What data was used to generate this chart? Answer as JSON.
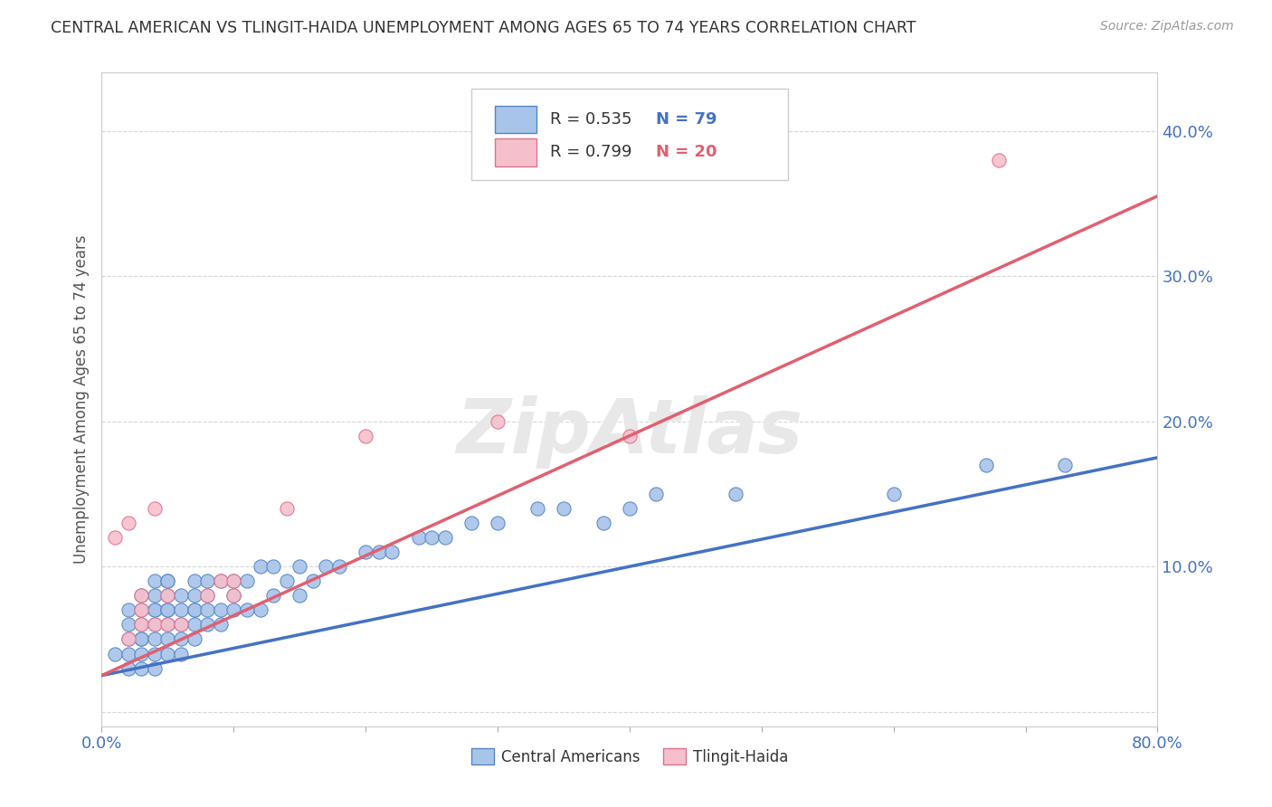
{
  "title": "CENTRAL AMERICAN VS TLINGIT-HAIDA UNEMPLOYMENT AMONG AGES 65 TO 74 YEARS CORRELATION CHART",
  "source": "Source: ZipAtlas.com",
  "ylabel": "Unemployment Among Ages 65 to 74 years",
  "xlim": [
    0.0,
    0.8
  ],
  "ylim": [
    -0.01,
    0.44
  ],
  "xticks": [
    0.0,
    0.1,
    0.2,
    0.3,
    0.4,
    0.5,
    0.6,
    0.7,
    0.8
  ],
  "yticks": [
    0.0,
    0.1,
    0.2,
    0.3,
    0.4
  ],
  "legend_r_blue": "R = 0.535",
  "legend_n_blue": "N = 79",
  "legend_r_pink": "R = 0.799",
  "legend_n_pink": "N = 20",
  "color_blue_fill": "#a8c4e8",
  "color_blue_edge": "#5585c5",
  "color_blue_line": "#4472c4",
  "color_pink_fill": "#f5c0cc",
  "color_pink_edge": "#e07090",
  "color_pink_line": "#e06070",
  "color_axis_text": "#4472c4",
  "blue_scatter_x": [
    0.01,
    0.02,
    0.02,
    0.02,
    0.02,
    0.02,
    0.03,
    0.03,
    0.03,
    0.03,
    0.03,
    0.03,
    0.03,
    0.04,
    0.04,
    0.04,
    0.04,
    0.04,
    0.04,
    0.04,
    0.04,
    0.05,
    0.05,
    0.05,
    0.05,
    0.05,
    0.05,
    0.05,
    0.05,
    0.06,
    0.06,
    0.06,
    0.06,
    0.06,
    0.07,
    0.07,
    0.07,
    0.07,
    0.07,
    0.07,
    0.08,
    0.08,
    0.08,
    0.08,
    0.09,
    0.09,
    0.09,
    0.1,
    0.1,
    0.1,
    0.11,
    0.11,
    0.12,
    0.12,
    0.13,
    0.13,
    0.14,
    0.15,
    0.15,
    0.16,
    0.17,
    0.18,
    0.2,
    0.21,
    0.22,
    0.24,
    0.25,
    0.26,
    0.28,
    0.3,
    0.33,
    0.35,
    0.38,
    0.4,
    0.42,
    0.48,
    0.6,
    0.67,
    0.73
  ],
  "blue_scatter_y": [
    0.04,
    0.03,
    0.04,
    0.05,
    0.06,
    0.07,
    0.03,
    0.04,
    0.05,
    0.05,
    0.06,
    0.07,
    0.08,
    0.03,
    0.04,
    0.05,
    0.06,
    0.07,
    0.07,
    0.08,
    0.09,
    0.04,
    0.05,
    0.06,
    0.07,
    0.07,
    0.08,
    0.09,
    0.09,
    0.04,
    0.05,
    0.06,
    0.07,
    0.08,
    0.05,
    0.06,
    0.07,
    0.07,
    0.08,
    0.09,
    0.06,
    0.07,
    0.08,
    0.09,
    0.06,
    0.07,
    0.09,
    0.07,
    0.08,
    0.09,
    0.07,
    0.09,
    0.07,
    0.1,
    0.08,
    0.1,
    0.09,
    0.08,
    0.1,
    0.09,
    0.1,
    0.1,
    0.11,
    0.11,
    0.11,
    0.12,
    0.12,
    0.12,
    0.13,
    0.13,
    0.14,
    0.14,
    0.13,
    0.14,
    0.15,
    0.15,
    0.15,
    0.17,
    0.17
  ],
  "pink_scatter_x": [
    0.01,
    0.02,
    0.02,
    0.03,
    0.03,
    0.03,
    0.04,
    0.04,
    0.05,
    0.05,
    0.06,
    0.08,
    0.09,
    0.1,
    0.1,
    0.14,
    0.2,
    0.3,
    0.4,
    0.68
  ],
  "pink_scatter_y": [
    0.12,
    0.05,
    0.13,
    0.06,
    0.07,
    0.08,
    0.06,
    0.14,
    0.06,
    0.08,
    0.06,
    0.08,
    0.09,
    0.08,
    0.09,
    0.14,
    0.19,
    0.2,
    0.19,
    0.38
  ],
  "blue_trendline_x": [
    0.0,
    0.8
  ],
  "blue_trendline_y": [
    0.025,
    0.175
  ],
  "pink_trendline_x": [
    0.0,
    0.8
  ],
  "pink_trendline_y": [
    0.025,
    0.355
  ]
}
